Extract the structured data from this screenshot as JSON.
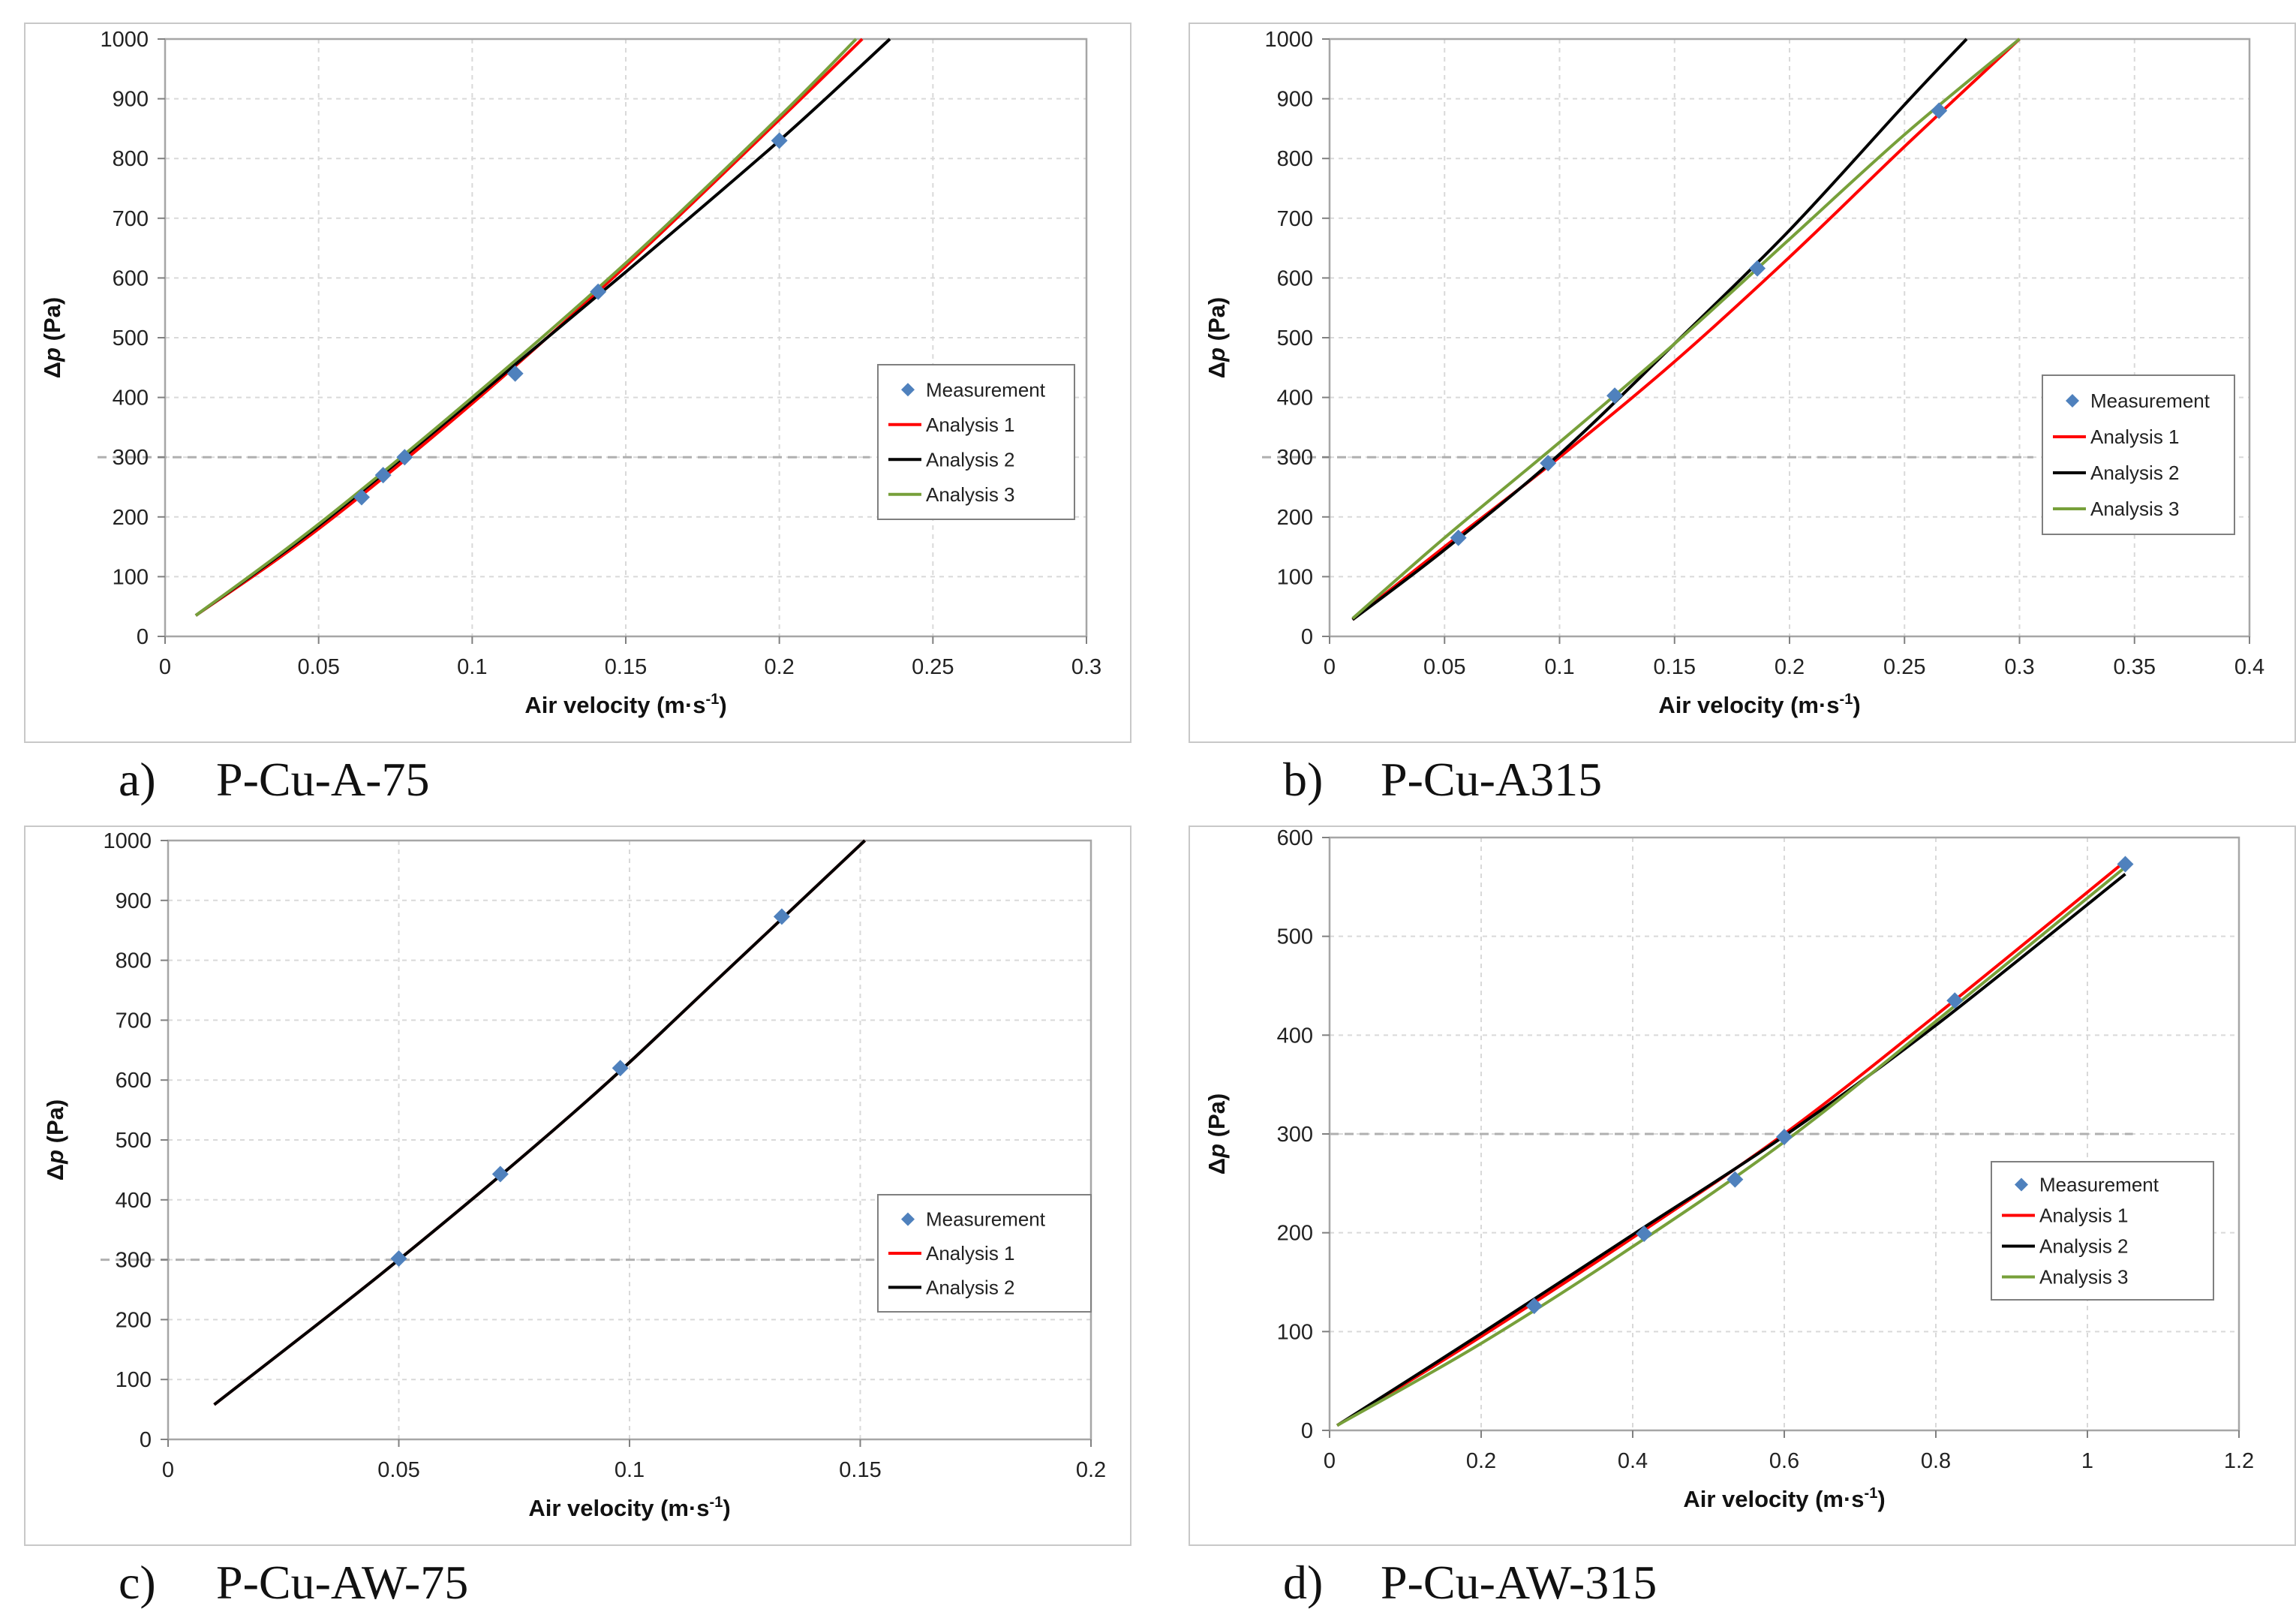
{
  "chart_data": [
    {
      "panel": "a)",
      "name": "P-Cu-A-75",
      "type": "line",
      "xlabel": "Air velocity (m·s",
      "xlabel_sup": "-1",
      "xlabel_end": ")",
      "ylabel_prefix": "Δ",
      "ylabel_var": "p",
      "ylabel_suffix": " (Pa)",
      "xlim": [
        0,
        0.3
      ],
      "ylim": [
        0,
        1000
      ],
      "xticks": [
        0,
        0.05,
        0.1,
        0.15,
        0.2,
        0.25,
        0.3
      ],
      "xtick_labels": [
        "0",
        "0.05",
        "0.1",
        "0.15",
        "0.2",
        "0.25",
        "0.3"
      ],
      "yticks": [
        0,
        100,
        200,
        300,
        400,
        500,
        600,
        700,
        800,
        900,
        1000
      ],
      "ytick_labels": [
        "0",
        "100",
        "200",
        "300",
        "400",
        "500",
        "600",
        "700",
        "800",
        "900",
        "1000"
      ],
      "reference_line_y": 300,
      "legend_position": "right",
      "measurement": {
        "name": "Measurement",
        "color": "#4f81bd",
        "x": [
          0.064,
          0.071,
          0.078,
          0.114,
          0.141,
          0.2
        ],
        "y": [
          233,
          270,
          300,
          440,
          577,
          830
        ]
      },
      "series": [
        {
          "name": "Analysis 1",
          "color": "#ff0000",
          "x": [
            0.01,
            0.05,
            0.1,
            0.15,
            0.2,
            0.227
          ],
          "y": [
            35,
            180,
            390,
            620,
            865,
            1000
          ]
        },
        {
          "name": "Analysis 2",
          "color": "#000000",
          "x": [
            0.01,
            0.05,
            0.1,
            0.15,
            0.2,
            0.236
          ],
          "y": [
            35,
            185,
            395,
            610,
            830,
            1000
          ]
        },
        {
          "name": "Analysis 3",
          "color": "#77a03a",
          "x": [
            0.01,
            0.05,
            0.1,
            0.15,
            0.2,
            0.225
          ],
          "y": [
            35,
            188,
            400,
            625,
            870,
            1000
          ]
        }
      ]
    },
    {
      "panel": "b)",
      "name": "P-Cu-A315",
      "type": "line",
      "xlabel": "Air velocity (m·s",
      "xlabel_sup": "-1",
      "xlabel_end": ")",
      "ylabel_prefix": "Δ",
      "ylabel_var": "p",
      "ylabel_suffix": " (Pa)",
      "xlim": [
        0,
        0.4
      ],
      "ylim": [
        0,
        1000
      ],
      "xticks": [
        0,
        0.05,
        0.1,
        0.15,
        0.2,
        0.25,
        0.3,
        0.35,
        0.4
      ],
      "xtick_labels": [
        "0",
        "0.05",
        "0.1",
        "0.15",
        "0.2",
        "0.25",
        "0.3",
        "0.35",
        "0.4"
      ],
      "yticks": [
        0,
        100,
        200,
        300,
        400,
        500,
        600,
        700,
        800,
        900,
        1000
      ],
      "ytick_labels": [
        "0",
        "100",
        "200",
        "300",
        "400",
        "500",
        "600",
        "700",
        "800",
        "900",
        "1000"
      ],
      "reference_line_y": 300,
      "legend_position": "right",
      "measurement": {
        "name": "Measurement",
        "color": "#4f81bd",
        "x": [
          0.056,
          0.095,
          0.124,
          0.186,
          0.265
        ],
        "y": [
          165,
          290,
          403,
          616,
          880
        ]
      },
      "series": [
        {
          "name": "Analysis 1",
          "color": "#ff0000",
          "x": [
            0.01,
            0.05,
            0.1,
            0.15,
            0.2,
            0.25,
            0.3
          ],
          "y": [
            28,
            150,
            300,
            460,
            635,
            820,
            1000
          ]
        },
        {
          "name": "Analysis 2",
          "color": "#000000",
          "x": [
            0.01,
            0.05,
            0.1,
            0.15,
            0.2,
            0.25,
            0.277
          ],
          "y": [
            28,
            145,
            305,
            490,
            680,
            890,
            1000
          ]
        },
        {
          "name": "Analysis 3",
          "color": "#77a03a",
          "x": [
            0.01,
            0.05,
            0.1,
            0.15,
            0.2,
            0.25,
            0.3
          ],
          "y": [
            30,
            165,
            325,
            490,
            665,
            840,
            1000
          ]
        }
      ]
    },
    {
      "panel": "c)",
      "name": "P-Cu-AW-75",
      "type": "line",
      "xlabel": "Air velocity (m·s",
      "xlabel_sup": "-1",
      "xlabel_end": ")",
      "ylabel_prefix": "Δ",
      "ylabel_var": "p",
      "ylabel_suffix": " (Pa)",
      "xlim": [
        0,
        0.2
      ],
      "ylim": [
        0,
        1000
      ],
      "xticks": [
        0,
        0.05,
        0.1,
        0.15,
        0.2
      ],
      "xtick_labels": [
        "0",
        "0.05",
        "0.1",
        "0.15",
        "0.2"
      ],
      "yticks": [
        0,
        100,
        200,
        300,
        400,
        500,
        600,
        700,
        800,
        900,
        1000
      ],
      "ytick_labels": [
        "0",
        "100",
        "200",
        "300",
        "400",
        "500",
        "600",
        "700",
        "800",
        "900",
        "1000"
      ],
      "reference_line_y": 300,
      "legend_position": "right",
      "measurement": {
        "name": "Measurement",
        "color": "#4f81bd",
        "x": [
          0.05,
          0.072,
          0.098,
          0.133
        ],
        "y": [
          302,
          443,
          620,
          873
        ]
      },
      "series": [
        {
          "name": "Analysis 1",
          "color": "#ff0000",
          "x": [
            0.01,
            0.05,
            0.09,
            0.12,
            0.151
          ],
          "y": [
            58,
            300,
            560,
            775,
            1000
          ]
        },
        {
          "name": "Analysis 2",
          "color": "#000000",
          "x": [
            0.01,
            0.05,
            0.09,
            0.12,
            0.151
          ],
          "y": [
            58,
            300,
            560,
            775,
            1000
          ]
        }
      ]
    },
    {
      "panel": "d)",
      "name": "P-Cu-AW-315",
      "type": "line",
      "xlabel": "Air velocity (m·s",
      "xlabel_sup": "-1",
      "xlabel_end": ")",
      "ylabel_prefix": "Δ",
      "ylabel_var": "p",
      "ylabel_suffix": " (Pa)",
      "xlim": [
        0,
        1.2
      ],
      "ylim": [
        0,
        600
      ],
      "xticks": [
        0,
        0.2,
        0.4,
        0.6,
        0.8,
        1,
        1.2
      ],
      "xtick_labels": [
        "0",
        "0.2",
        "0.4",
        "0.6",
        "0.8",
        "1",
        "1.2"
      ],
      "yticks": [
        0,
        100,
        200,
        300,
        400,
        500,
        600
      ],
      "ytick_labels": [
        "0",
        "100",
        "200",
        "300",
        "400",
        "500",
        "600"
      ],
      "reference_line_y": 300,
      "legend_position": "right",
      "measurement": {
        "name": "Measurement",
        "color": "#4f81bd",
        "x": [
          0.27,
          0.415,
          0.535,
          0.6,
          0.825,
          1.05
        ],
        "y": [
          126,
          199,
          254,
          297,
          435,
          573
        ]
      },
      "series": [
        {
          "name": "Analysis 1",
          "color": "#ff0000",
          "x": [
            0.01,
            0.2,
            0.4,
            0.6,
            0.8,
            1.05
          ],
          "y": [
            5,
            95,
            195,
            300,
            420,
            576
          ]
        },
        {
          "name": "Analysis 2",
          "color": "#000000",
          "x": [
            0.01,
            0.2,
            0.4,
            0.6,
            0.8,
            1.05
          ],
          "y": [
            5,
            98,
            198,
            298,
            410,
            563
          ]
        },
        {
          "name": "Analysis 3",
          "color": "#77a03a",
          "x": [
            0.01,
            0.2,
            0.4,
            0.6,
            0.8,
            1.05
          ],
          "y": [
            5,
            88,
            186,
            292,
            414,
            570
          ]
        }
      ]
    }
  ]
}
